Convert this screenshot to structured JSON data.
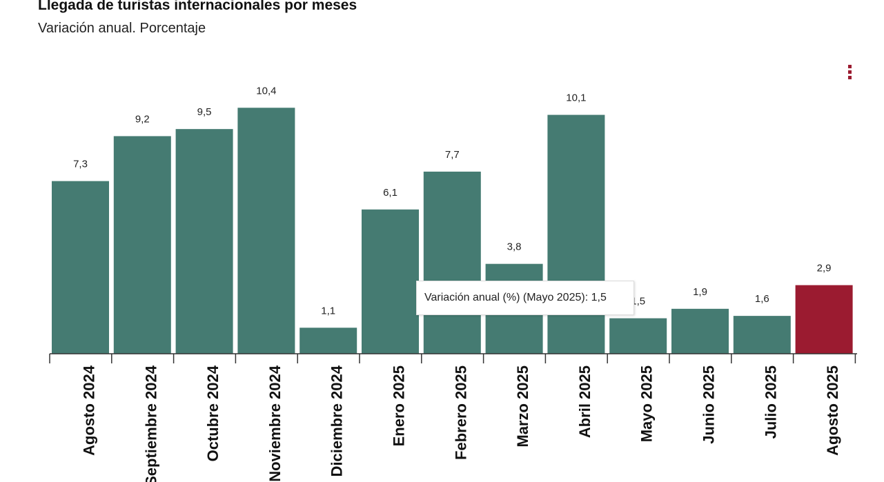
{
  "chart_data": {
    "type": "bar",
    "title": "Llegada de turistas internacionales por meses",
    "subtitle": "Variación anual. Porcentaje",
    "categories": [
      "Agosto 2024",
      "Septiembre 2024",
      "Octubre 2024",
      "Noviembre 2024",
      "Diciembre 2024",
      "Enero 2025",
      "Febrero 2025",
      "Marzo 2025",
      "Abril 2025",
      "Mayo 2025",
      "Junio 2025",
      "Julio 2025",
      "Agosto 2025"
    ],
    "values": [
      7.3,
      9.2,
      9.5,
      10.4,
      1.1,
      6.1,
      7.7,
      3.8,
      10.1,
      1.5,
      1.9,
      1.6,
      2.9
    ],
    "data_labels": [
      "7,3",
      "9,2",
      "9,5",
      "10,4",
      "1,1",
      "6,1",
      "7,7",
      "3,8",
      "10,1",
      "1,5",
      "1,9",
      "1,6",
      "2,9"
    ],
    "ylim": [
      0,
      10.4
    ],
    "grid": false,
    "colors": {
      "default": "#457b72",
      "highlight": "#9b1b30"
    },
    "highlight_index": 12
  },
  "tooltip": {
    "text": "Variación anual (%) (Mayo 2025): 1,5"
  },
  "menu_icon": "kebab-menu-icon"
}
